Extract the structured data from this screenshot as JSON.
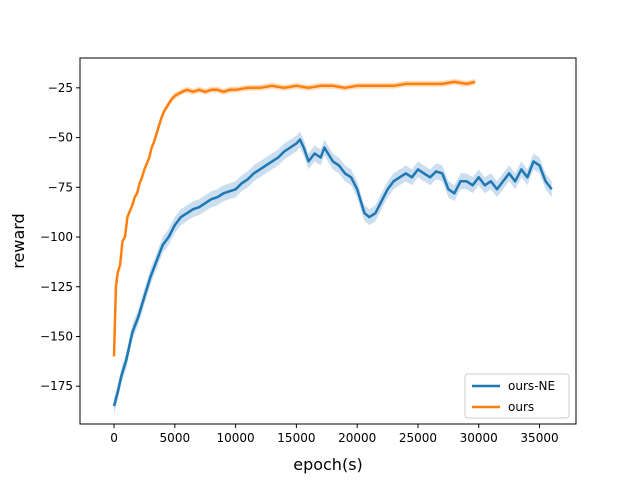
{
  "chart_data": {
    "type": "line",
    "title": "",
    "xlabel": "epoch(s)",
    "ylabel": "reward",
    "xlim": [
      -2800,
      38000
    ],
    "ylim": [
      -194,
      -10
    ],
    "xticks": [
      0,
      5000,
      10000,
      15000,
      20000,
      25000,
      30000,
      35000
    ],
    "yticks": [
      -175,
      -150,
      -125,
      -100,
      -75,
      -50,
      -25
    ],
    "grid": false,
    "legend": {
      "position": "lower-right",
      "entries": [
        "ours-NE",
        "ours"
      ]
    },
    "series": [
      {
        "name": "ours-NE",
        "color": "#1f77b4",
        "band_color": "#a6c8e6",
        "band": 4,
        "x": [
          0,
          300,
          600,
          1000,
          1500,
          2000,
          2500,
          3000,
          3500,
          4000,
          4500,
          5000,
          5500,
          6000,
          6500,
          7000,
          7500,
          8000,
          8500,
          9000,
          9500,
          10000,
          10500,
          11000,
          11500,
          12000,
          12500,
          13000,
          13500,
          14000,
          14500,
          15000,
          15300,
          15600,
          16000,
          16500,
          17000,
          17300,
          17600,
          18000,
          18500,
          19000,
          19500,
          20000,
          20300,
          20600,
          21000,
          21500,
          22000,
          22500,
          23000,
          23500,
          24000,
          24500,
          25000,
          25500,
          26000,
          26500,
          27000,
          27500,
          28000,
          28500,
          29000,
          29500,
          30000,
          30500,
          31000,
          31500,
          32000,
          32500,
          33000,
          33500,
          34000,
          34500,
          35000,
          35500,
          36000
        ],
        "y": [
          -185,
          -178,
          -170,
          -162,
          -148,
          -140,
          -130,
          -120,
          -112,
          -104,
          -100,
          -94,
          -90,
          -88,
          -86,
          -85,
          -83,
          -81,
          -80,
          -78,
          -77,
          -76,
          -73,
          -71,
          -68,
          -66,
          -64,
          -62,
          -60,
          -57,
          -55,
          -53,
          -51,
          -55,
          -62,
          -58,
          -60,
          -55,
          -58,
          -62,
          -64,
          -68,
          -70,
          -76,
          -82,
          -88,
          -90,
          -88,
          -82,
          -76,
          -72,
          -70,
          -68,
          -70,
          -66,
          -68,
          -70,
          -67,
          -68,
          -76,
          -78,
          -72,
          -72,
          -74,
          -70,
          -74,
          -72,
          -76,
          -72,
          -68,
          -72,
          -66,
          -70,
          -62,
          -64,
          -72,
          -76
        ]
      },
      {
        "name": "ours",
        "color": "#ff7f0e",
        "band_color": "#ffc38a",
        "band": 1.5,
        "x": [
          0,
          150,
          300,
          500,
          700,
          900,
          1100,
          1300,
          1500,
          1700,
          1900,
          2100,
          2300,
          2500,
          2700,
          2900,
          3100,
          3300,
          3500,
          3700,
          3900,
          4100,
          4300,
          4500,
          4700,
          5000,
          5300,
          5600,
          6000,
          6500,
          7000,
          7500,
          8000,
          8500,
          9000,
          9500,
          10000,
          11000,
          12000,
          13000,
          14000,
          15000,
          16000,
          17000,
          18000,
          19000,
          20000,
          21000,
          22000,
          23000,
          24000,
          25000,
          26000,
          27000,
          28000,
          29000,
          29700
        ],
        "y": [
          -160,
          -125,
          -118,
          -114,
          -102,
          -100,
          -90,
          -87,
          -84,
          -80,
          -78,
          -73,
          -70,
          -66,
          -63,
          -60,
          -55,
          -52,
          -48,
          -44,
          -40,
          -37,
          -35,
          -33,
          -31,
          -29,
          -28,
          -27,
          -26,
          -27,
          -26,
          -27,
          -26,
          -26,
          -27,
          -26,
          -26,
          -25,
          -25,
          -24,
          -25,
          -24,
          -25,
          -24,
          -24,
          -25,
          -24,
          -24,
          -24,
          -24,
          -23,
          -23,
          -23,
          -23,
          -22,
          -23,
          -22
        ]
      }
    ]
  }
}
